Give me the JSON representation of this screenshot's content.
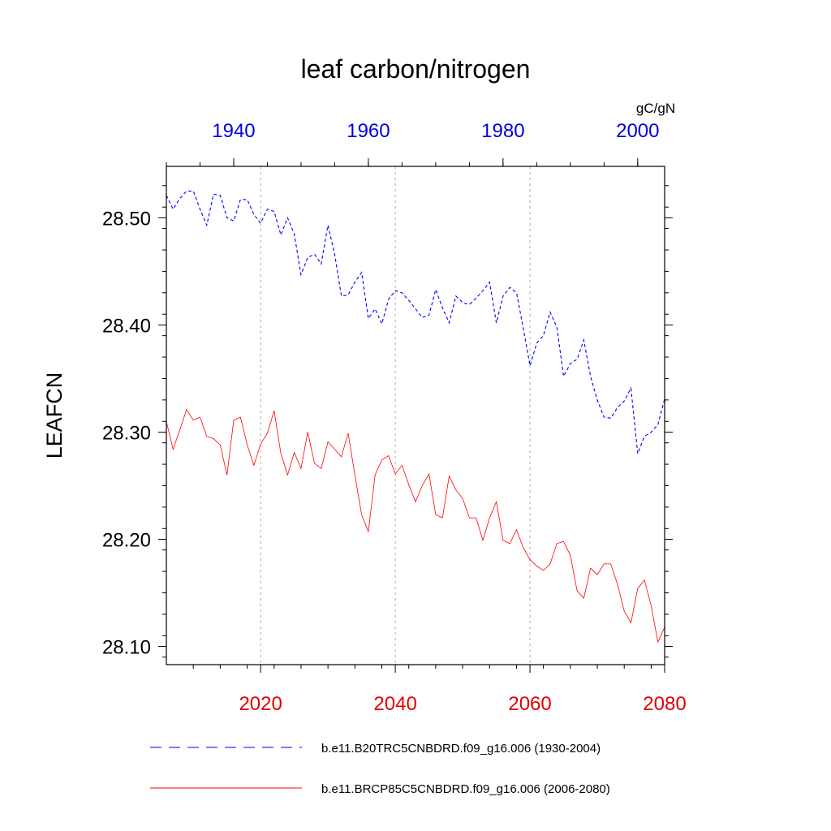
{
  "chart_data": {
    "type": "line",
    "title": "leaf carbon/nitrogen",
    "ylabel": "LEAFCN",
    "units": "gC/gN",
    "ylim": [
      28.083,
      28.548
    ],
    "yticks": [
      "28.10",
      "28.20",
      "28.30",
      "28.40",
      "28.50"
    ],
    "bottom_axis": {
      "xlim": [
        2006,
        2080
      ],
      "ticks": [
        "2020",
        "2040",
        "2060",
        "2080"
      ],
      "color": "#e00000"
    },
    "top_axis": {
      "xlim": [
        1930,
        2004
      ],
      "ticks": [
        "1940",
        "1960",
        "1980",
        "2000"
      ],
      "color": "#0000e0"
    },
    "gridlines_x": [
      2020,
      2040,
      2060
    ],
    "series": [
      {
        "name": "b.e11.B20TRC5CNBDRD.f09_g16.006 (1930-2004)",
        "axis": "top",
        "color": "#0000ff",
        "dash": "dashed",
        "x_start": 1930,
        "values": [
          28.521,
          28.508,
          28.518,
          28.525,
          28.525,
          28.508,
          28.493,
          28.522,
          28.521,
          28.5,
          28.497,
          28.517,
          28.517,
          28.503,
          28.495,
          28.508,
          28.506,
          28.484,
          28.5,
          28.485,
          28.447,
          28.463,
          28.466,
          28.457,
          28.493,
          28.466,
          28.427,
          28.428,
          28.44,
          28.449,
          28.406,
          28.415,
          28.401,
          28.424,
          28.432,
          28.43,
          28.423,
          28.415,
          28.407,
          28.409,
          28.433,
          28.416,
          28.402,
          28.427,
          28.421,
          28.419,
          28.425,
          28.432,
          28.44,
          28.402,
          28.427,
          28.435,
          28.43,
          28.397,
          28.362,
          28.383,
          28.39,
          28.412,
          28.398,
          28.352,
          28.364,
          28.368,
          28.386,
          28.352,
          28.33,
          28.314,
          28.313,
          28.323,
          28.329,
          28.341,
          28.28,
          28.296,
          28.3,
          28.307,
          28.331
        ]
      },
      {
        "name": "b.e11.BRCP85C5CNBDRD.f09_g16.006 (2006-2080)",
        "axis": "bottom",
        "color": "#ff0000",
        "dash": "solid",
        "x_start": 2006,
        "values": [
          28.31,
          28.284,
          28.302,
          28.321,
          28.311,
          28.314,
          28.296,
          28.294,
          28.288,
          28.26,
          28.311,
          28.314,
          28.288,
          28.269,
          28.289,
          28.299,
          28.32,
          28.28,
          28.26,
          28.281,
          28.266,
          28.3,
          28.271,
          28.266,
          28.291,
          28.284,
          28.277,
          28.299,
          28.26,
          28.223,
          28.207,
          28.26,
          28.274,
          28.278,
          28.261,
          28.269,
          28.251,
          28.235,
          28.25,
          28.261,
          28.223,
          28.22,
          28.259,
          28.246,
          28.238,
          28.22,
          28.22,
          28.199,
          28.22,
          28.235,
          28.199,
          28.196,
          28.209,
          28.192,
          28.181,
          28.175,
          28.171,
          28.177,
          28.196,
          28.198,
          28.185,
          28.152,
          28.145,
          28.173,
          28.167,
          28.177,
          28.177,
          28.158,
          28.133,
          28.122,
          28.154,
          28.162,
          28.138,
          28.104,
          28.118
        ]
      }
    ],
    "legend": {
      "placement": "bottom",
      "entries": [
        "b.e11.B20TRC5CNBDRD.f09_g16.006 (1930-2004)",
        "b.e11.BRCP85C5CNBDRD.f09_g16.006 (2006-2080)"
      ]
    }
  }
}
